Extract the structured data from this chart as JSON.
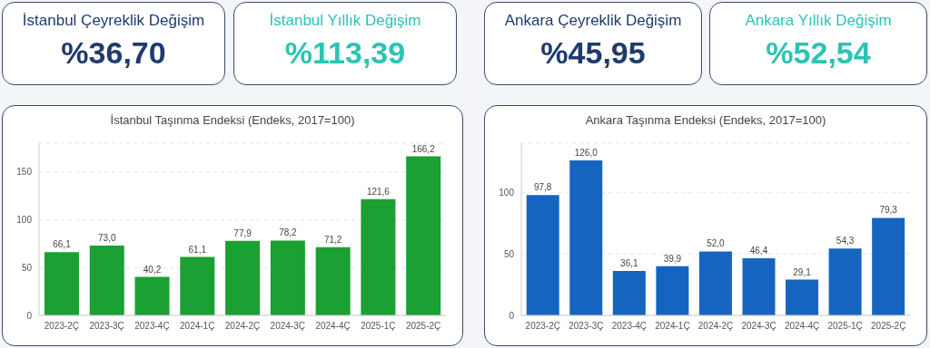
{
  "chart_data": [
    {
      "type": "other",
      "title": "İstanbul Çeyreklik Değişim",
      "annotations": [
        "%36,70"
      ]
    },
    {
      "type": "other",
      "title": "İstanbul Yıllık Değişim",
      "annotations": [
        "%113,39"
      ]
    },
    {
      "type": "other",
      "title": "Ankara Çeyreklik Değişim",
      "annotations": [
        "%45,95"
      ]
    },
    {
      "type": "other",
      "title": "Ankara Yıllık Değişim",
      "annotations": [
        "%52,54"
      ]
    },
    {
      "type": "bar",
      "title": "İstanbul Taşınma Endeksi (Endeks, 2017=100)",
      "categories": [
        "2023-2Ç",
        "2023-3Ç",
        "2023-4Ç",
        "2024-1Ç",
        "2024-2Ç",
        "2024-3Ç",
        "2024-4Ç",
        "2025-1Ç",
        "2025-2Ç"
      ],
      "values": [
        66.1,
        73.0,
        40.2,
        61.1,
        77.9,
        78.2,
        71.2,
        121.6,
        166.2
      ],
      "value_labels": [
        "66,1",
        "73,0",
        "40,2",
        "61,1",
        "77,9",
        "78,2",
        "71,2",
        "121,6",
        "166,2"
      ],
      "color": "#1aa033",
      "ylim": [
        0,
        180
      ],
      "yticks": [
        0,
        50,
        100,
        150
      ],
      "grid": "y"
    },
    {
      "type": "bar",
      "title": "Ankara Taşınma Endeksi (Endeks, 2017=100)",
      "categories": [
        "2023-2Ç",
        "2023-3Ç",
        "2023-4Ç",
        "2024-1Ç",
        "2024-2Ç",
        "2024-3Ç",
        "2024-4Ç",
        "2025-1Ç",
        "2025-2Ç"
      ],
      "values": [
        97.8,
        126.0,
        36.1,
        39.9,
        52.0,
        46.4,
        29.1,
        54.3,
        79.3
      ],
      "value_labels": [
        "97,8",
        "126,0",
        "36,1",
        "39,9",
        "52,0",
        "46,4",
        "29,1",
        "54,3",
        "79,3"
      ],
      "color": "#1565c0",
      "ylim": [
        0,
        140
      ],
      "yticks": [
        0,
        50,
        100
      ],
      "grid": "y"
    }
  ]
}
